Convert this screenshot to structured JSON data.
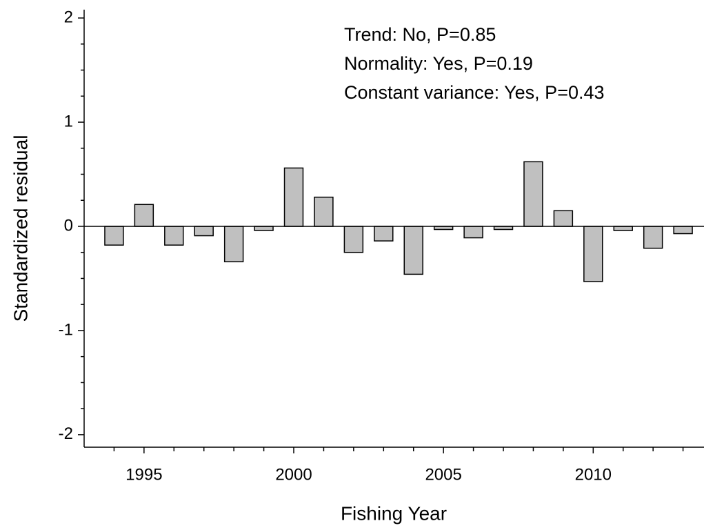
{
  "chart_data": {
    "type": "bar",
    "x_label": "Fishing Year",
    "y_label": "Standardized residual",
    "annotations": [
      "Trend: No, P=0.85",
      "Normality: Yes, P=0.19",
      "Constant variance: Yes, P=0.43"
    ],
    "x": [
      1994,
      1995,
      1996,
      1997,
      1998,
      1999,
      2000,
      2001,
      2002,
      2003,
      2004,
      2005,
      2006,
      2007,
      2008,
      2009,
      2010,
      2011,
      2012,
      2013
    ],
    "values": [
      -0.18,
      0.21,
      -0.18,
      -0.09,
      -0.34,
      -0.04,
      0.56,
      0.28,
      -0.25,
      -0.14,
      -0.46,
      -0.03,
      -0.11,
      -0.03,
      0.62,
      0.15,
      -0.53,
      -0.04,
      -0.21,
      -0.07
    ],
    "color": "#c0c0c0",
    "xlim": [
      1993,
      2013.7
    ],
    "ylim": [
      -2.12,
      2.08
    ],
    "xticks": [
      1995,
      2000,
      2005,
      2010
    ],
    "xminorticks": [
      1994,
      1996,
      1997,
      1998,
      1999,
      2001,
      2002,
      2003,
      2004,
      2006,
      2007,
      2008,
      2009,
      2011,
      2012,
      2013
    ],
    "yticks": [
      -2,
      -1,
      0,
      1,
      2
    ],
    "yminorticks": [
      -1.75,
      -1.5,
      -1.25,
      -0.75,
      -0.5,
      -0.25,
      0.25,
      0.5,
      0.75,
      1.25,
      1.5,
      1.75
    ],
    "zero_line": true
  }
}
